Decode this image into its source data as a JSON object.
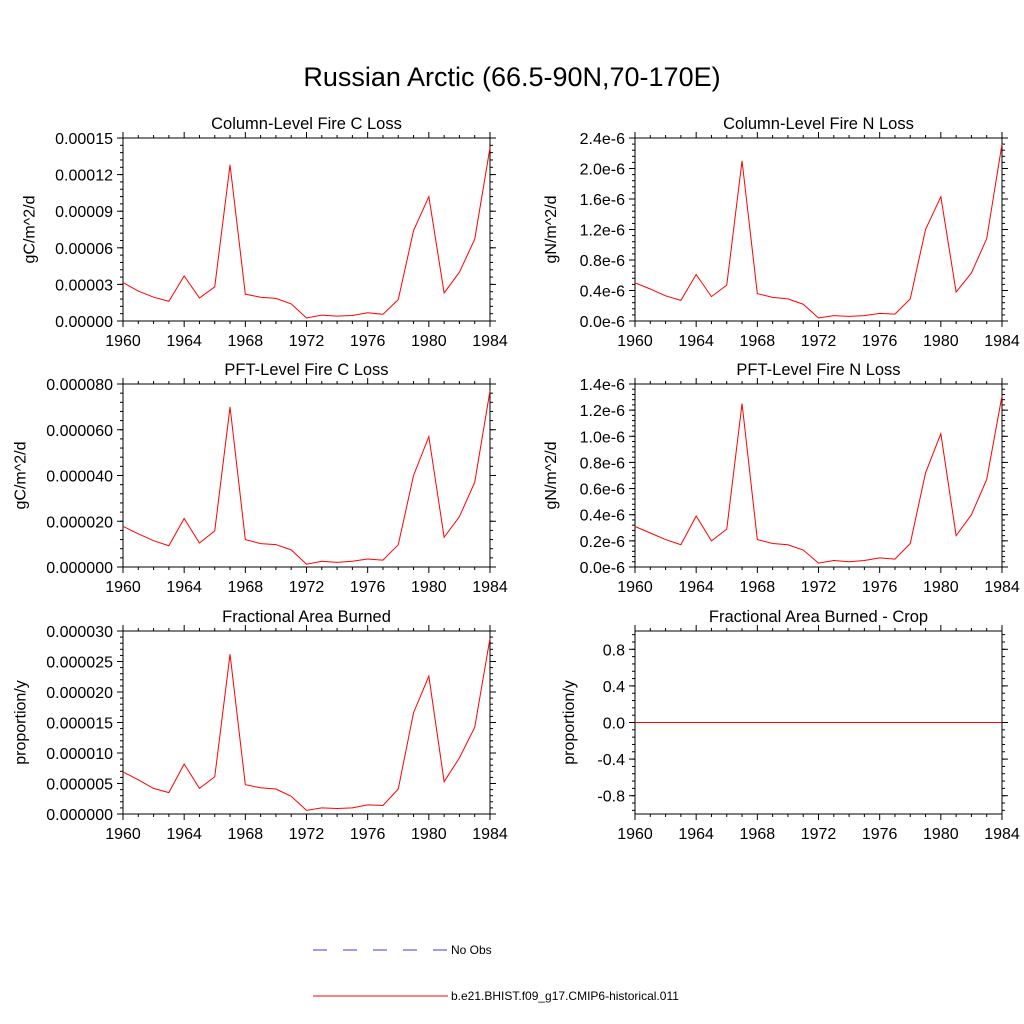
{
  "title": "Russian Arctic (66.5-90N,70-170E)",
  "colors": {
    "model": "#ff0000",
    "obs": "#3b3bd6",
    "axis": "#000000"
  },
  "legend": {
    "obs_label": "No Obs",
    "model_label": "b.e21.BHIST.f09_g17.CMIP6-historical.011"
  },
  "chart_data": [
    {
      "id": "col-fire-c",
      "type": "line",
      "title": "Column-Level Fire C Loss",
      "xlabel": "",
      "ylabel": "gC/m^2/d",
      "xlim": [
        1960,
        1984
      ],
      "ylim": [
        0,
        0.00015
      ],
      "xticks": [
        1960,
        1964,
        1968,
        1972,
        1976,
        1980,
        1984
      ],
      "yticks": [
        0,
        3e-05,
        6e-05,
        9e-05,
        0.00012,
        0.00015
      ],
      "yticklabels": [
        "0.00000",
        "0.00003",
        "0.00006",
        "0.00009",
        "0.00012",
        "0.00015"
      ],
      "x": [
        1960,
        1961,
        1962,
        1963,
        1964,
        1965,
        1966,
        1967,
        1968,
        1969,
        1970,
        1971,
        1972,
        1973,
        1974,
        1975,
        1976,
        1977,
        1978,
        1979,
        1980,
        1981,
        1982,
        1983,
        1984
      ],
      "series": [
        {
          "name": "b.e21.BHIST.f09_g17.CMIP6-historical.011",
          "values": [
            3.15e-05,
            2.45e-05,
            1.95e-05,
            1.62e-05,
            3.7e-05,
            1.88e-05,
            2.8e-05,
            0.000128,
            2.2e-05,
            1.95e-05,
            1.85e-05,
            1.4e-05,
            2.5e-06,
            4.8e-06,
            4e-06,
            4.5e-06,
            6.8e-06,
            5.5e-06,
            1.75e-05,
            7.4e-05,
            0.000102,
            2.3e-05,
            4e-05,
            6.7e-05,
            0.000142
          ]
        }
      ]
    },
    {
      "id": "col-fire-n",
      "type": "line",
      "title": "Column-Level Fire N Loss",
      "xlabel": "",
      "ylabel": "gN/m^2/d",
      "xlim": [
        1960,
        1984
      ],
      "ylim": [
        0,
        2.4e-06
      ],
      "xticks": [
        1960,
        1964,
        1968,
        1972,
        1976,
        1980,
        1984
      ],
      "yticks": [
        0,
        4e-07,
        8e-07,
        1.2e-06,
        1.6e-06,
        2e-06,
        2.4e-06
      ],
      "yticklabels": [
        "0.0e-6",
        "0.4e-6",
        "0.8e-6",
        "1.2e-6",
        "1.6e-6",
        "2.0e-6",
        "2.4e-6"
      ],
      "x": [
        1960,
        1961,
        1962,
        1963,
        1964,
        1965,
        1966,
        1967,
        1968,
        1969,
        1970,
        1971,
        1972,
        1973,
        1974,
        1975,
        1976,
        1977,
        1978,
        1979,
        1980,
        1981,
        1982,
        1983,
        1984
      ],
      "series": [
        {
          "name": "b.e21.BHIST.f09_g17.CMIP6-historical.011",
          "values": [
            5e-07,
            4.2e-07,
            3.3e-07,
            2.7e-07,
            6.1e-07,
            3.2e-07,
            4.7e-07,
            2.1e-06,
            3.6e-07,
            3.1e-07,
            2.9e-07,
            2.2e-07,
            4e-08,
            7e-08,
            6e-08,
            7e-08,
            1e-07,
            9e-08,
            2.9e-07,
            1.2e-06,
            1.63e-06,
            3.8e-07,
            6.3e-07,
            1.08e-06,
            2.32e-06
          ]
        }
      ]
    },
    {
      "id": "pft-fire-c",
      "type": "line",
      "title": "PFT-Level Fire C Loss",
      "xlabel": "",
      "ylabel": "gC/m^2/d",
      "xlim": [
        1960,
        1984
      ],
      "ylim": [
        0,
        8e-05
      ],
      "xticks": [
        1960,
        1964,
        1968,
        1972,
        1976,
        1980,
        1984
      ],
      "yticks": [
        0,
        2e-05,
        4e-05,
        6e-05,
        8e-05
      ],
      "yticklabels": [
        "0.000000",
        "0.000020",
        "0.000040",
        "0.000060",
        "0.000080"
      ],
      "x": [
        1960,
        1961,
        1962,
        1963,
        1964,
        1965,
        1966,
        1967,
        1968,
        1969,
        1970,
        1971,
        1972,
        1973,
        1974,
        1975,
        1976,
        1977,
        1978,
        1979,
        1980,
        1981,
        1982,
        1983,
        1984
      ],
      "series": [
        {
          "name": "b.e21.BHIST.f09_g17.CMIP6-historical.011",
          "values": [
            1.78e-05,
            1.45e-05,
            1.15e-05,
            9.3e-06,
            2.12e-05,
            1.05e-05,
            1.58e-05,
            7e-05,
            1.2e-05,
            1.02e-05,
            9.8e-06,
            7.5e-06,
            1.2e-06,
            2.5e-06,
            2e-06,
            2.5e-06,
            3.5e-06,
            3e-06,
            9.7e-06,
            4e-05,
            5.7e-05,
            1.3e-05,
            2.2e-05,
            3.7e-05,
            7.7e-05
          ]
        }
      ]
    },
    {
      "id": "pft-fire-n",
      "type": "line",
      "title": "PFT-Level Fire N Loss",
      "xlabel": "",
      "ylabel": "gN/m^2/d",
      "xlim": [
        1960,
        1984
      ],
      "ylim": [
        0,
        1.4e-06
      ],
      "xticks": [
        1960,
        1964,
        1968,
        1972,
        1976,
        1980,
        1984
      ],
      "yticks": [
        0,
        2e-07,
        4e-07,
        6e-07,
        8e-07,
        1e-06,
        1.2e-06,
        1.4e-06
      ],
      "yticklabels": [
        "0.0e-6",
        "0.2e-6",
        "0.4e-6",
        "0.6e-6",
        "0.8e-6",
        "1.0e-6",
        "1.2e-6",
        "1.4e-6"
      ],
      "x": [
        1960,
        1961,
        1962,
        1963,
        1964,
        1965,
        1966,
        1967,
        1968,
        1969,
        1970,
        1971,
        1972,
        1973,
        1974,
        1975,
        1976,
        1977,
        1978,
        1979,
        1980,
        1981,
        1982,
        1983,
        1984
      ],
      "series": [
        {
          "name": "b.e21.BHIST.f09_g17.CMIP6-historical.011",
          "values": [
            3.1e-07,
            2.6e-07,
            2.1e-07,
            1.7e-07,
            3.9e-07,
            2e-07,
            2.9e-07,
            1.25e-06,
            2.1e-07,
            1.8e-07,
            1.7e-07,
            1.3e-07,
            3e-08,
            5e-08,
            4e-08,
            5e-08,
            7e-08,
            6e-08,
            1.8e-07,
            7.2e-07,
            1.02e-06,
            2.4e-07,
            4e-07,
            6.7e-07,
            1.31e-06
          ]
        }
      ]
    },
    {
      "id": "frac-area-burned",
      "type": "line",
      "title": "Fractional Area Burned",
      "xlabel": "",
      "ylabel": "proportion/y",
      "xlim": [
        1960,
        1984
      ],
      "ylim": [
        0,
        3e-05
      ],
      "xticks": [
        1960,
        1964,
        1968,
        1972,
        1976,
        1980,
        1984
      ],
      "yticks": [
        0,
        5e-06,
        1e-05,
        1.5e-05,
        2e-05,
        2.5e-05,
        3e-05
      ],
      "yticklabels": [
        "0.000000",
        "0.000005",
        "0.000010",
        "0.000015",
        "0.000020",
        "0.000025",
        "0.000030"
      ],
      "x": [
        1960,
        1961,
        1962,
        1963,
        1964,
        1965,
        1966,
        1967,
        1968,
        1969,
        1970,
        1971,
        1972,
        1973,
        1974,
        1975,
        1976,
        1977,
        1978,
        1979,
        1980,
        1981,
        1982,
        1983,
        1984
      ],
      "series": [
        {
          "name": "b.e21.BHIST.f09_g17.CMIP6-historical.011",
          "values": [
            6.9e-06,
            5.6e-06,
            4.2e-06,
            3.5e-06,
            8.2e-06,
            4.2e-06,
            6.1e-06,
            2.62e-05,
            4.8e-06,
            4.3e-06,
            4.1e-06,
            2.9e-06,
            6e-07,
            1e-06,
            9e-07,
            1e-06,
            1.5e-06,
            1.4e-06,
            4.1e-06,
            1.66e-05,
            2.26e-05,
            5.3e-06,
            9.2e-06,
            1.42e-05,
            2.88e-05
          ]
        }
      ]
    },
    {
      "id": "frac-area-burned-crop",
      "type": "line",
      "title": "Fractional Area Burned - Crop",
      "xlabel": "",
      "ylabel": "proportion/y",
      "xlim": [
        1960,
        1984
      ],
      "ylim": [
        -1,
        1
      ],
      "xticks": [
        1960,
        1964,
        1968,
        1972,
        1976,
        1980,
        1984
      ],
      "yticks": [
        -0.8,
        -0.4,
        0,
        0.4,
        0.8
      ],
      "yticklabels": [
        "-0.8",
        "-0.4",
        "0.0",
        "0.4",
        "0.8"
      ],
      "x": [
        1960,
        1984
      ],
      "series": [
        {
          "name": "b.e21.BHIST.f09_g17.CMIP6-historical.011",
          "values": [
            0,
            0
          ]
        }
      ]
    }
  ]
}
